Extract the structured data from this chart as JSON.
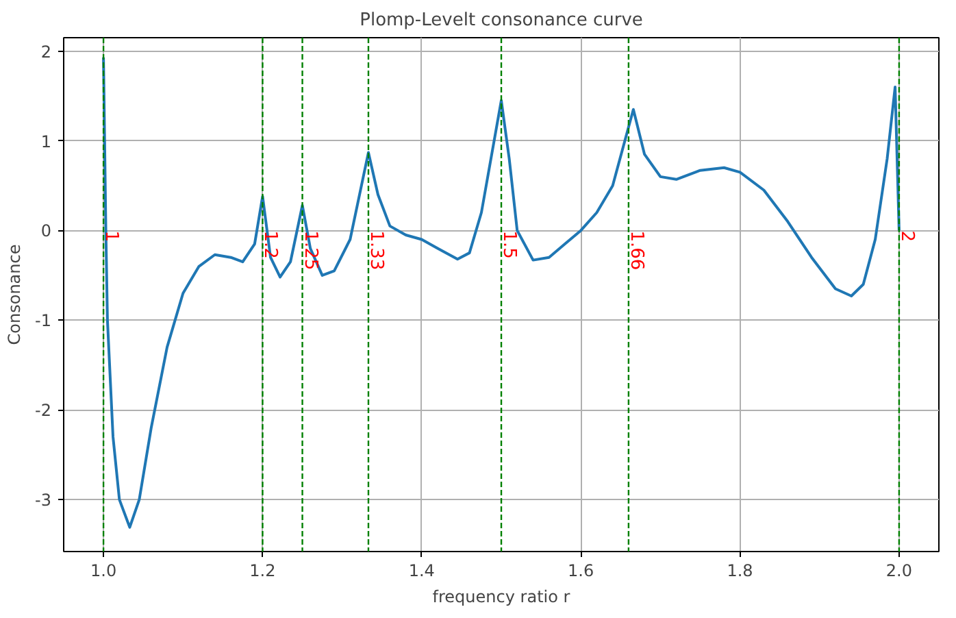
{
  "chart_data": {
    "type": "line",
    "title": "Plomp-Levelt consonance curve",
    "xlabel": "frequency ratio r",
    "ylabel": "Consonance",
    "x": [
      1.0,
      1.003,
      1.005,
      1.012,
      1.02,
      1.033,
      1.045,
      1.06,
      1.08,
      1.1,
      1.12,
      1.14,
      1.16,
      1.175,
      1.19,
      1.2,
      1.21,
      1.222,
      1.235,
      1.25,
      1.26,
      1.275,
      1.29,
      1.31,
      1.333,
      1.345,
      1.36,
      1.38,
      1.4,
      1.42,
      1.445,
      1.46,
      1.475,
      1.5,
      1.51,
      1.52,
      1.54,
      1.56,
      1.58,
      1.6,
      1.62,
      1.64,
      1.666,
      1.68,
      1.7,
      1.72,
      1.75,
      1.78,
      1.8,
      1.83,
      1.86,
      1.89,
      1.92,
      1.94,
      1.955,
      1.97,
      1.985,
      1.995,
      2.0
    ],
    "series": [
      {
        "color": "#1f77b4",
        "values": [
          1.93,
          0.0,
          -1.0,
          -2.3,
          -3.0,
          -3.31,
          -3.0,
          -2.2,
          -1.3,
          -0.7,
          -0.4,
          -0.27,
          -0.3,
          -0.35,
          -0.15,
          0.38,
          -0.3,
          -0.52,
          -0.35,
          0.28,
          -0.2,
          -0.5,
          -0.45,
          -0.1,
          0.87,
          0.4,
          0.05,
          -0.05,
          -0.1,
          -0.2,
          -0.32,
          -0.25,
          0.2,
          1.45,
          0.8,
          0.0,
          -0.33,
          -0.3,
          -0.15,
          0.0,
          0.2,
          0.5,
          1.35,
          0.85,
          0.6,
          0.57,
          0.67,
          0.7,
          0.65,
          0.45,
          0.1,
          -0.3,
          -0.65,
          -0.73,
          -0.6,
          -0.1,
          0.8,
          1.6,
          0.0
        ]
      }
    ],
    "xlim": [
      0.95,
      2.05
    ],
    "ylim": [
      -3.58,
      2.15
    ],
    "xticks": [
      {
        "value": 1.0,
        "label": "1.0"
      },
      {
        "value": 1.2,
        "label": "1.2"
      },
      {
        "value": 1.4,
        "label": "1.4"
      },
      {
        "value": 1.6,
        "label": "1.6"
      },
      {
        "value": 1.8,
        "label": "1.8"
      },
      {
        "value": 2.0,
        "label": "2.0"
      }
    ],
    "yticks": [
      -3,
      -2,
      -1,
      0,
      1,
      2
    ],
    "grid": true,
    "marker": "none",
    "line_style": "solid",
    "ref_lines": [
      {
        "axis": "x",
        "value": 1.0,
        "label": "1",
        "color": "#008000",
        "line_style": "dashed"
      },
      {
        "axis": "x",
        "value": 1.2,
        "label": "1.2",
        "color": "#008000",
        "line_style": "dashed"
      },
      {
        "axis": "x",
        "value": 1.25,
        "label": "1.25",
        "color": "#008000",
        "line_style": "dashed"
      },
      {
        "axis": "x",
        "value": 1.333,
        "label": "1.33",
        "color": "#008000",
        "line_style": "dashed"
      },
      {
        "axis": "x",
        "value": 1.5,
        "label": "1.5",
        "color": "#008000",
        "line_style": "dashed"
      },
      {
        "axis": "x",
        "value": 1.66,
        "label": "1.66",
        "color": "#008000",
        "line_style": "dashed"
      },
      {
        "axis": "x",
        "value": 2.0,
        "label": "2",
        "color": "#008000",
        "line_style": "dashed"
      }
    ]
  }
}
